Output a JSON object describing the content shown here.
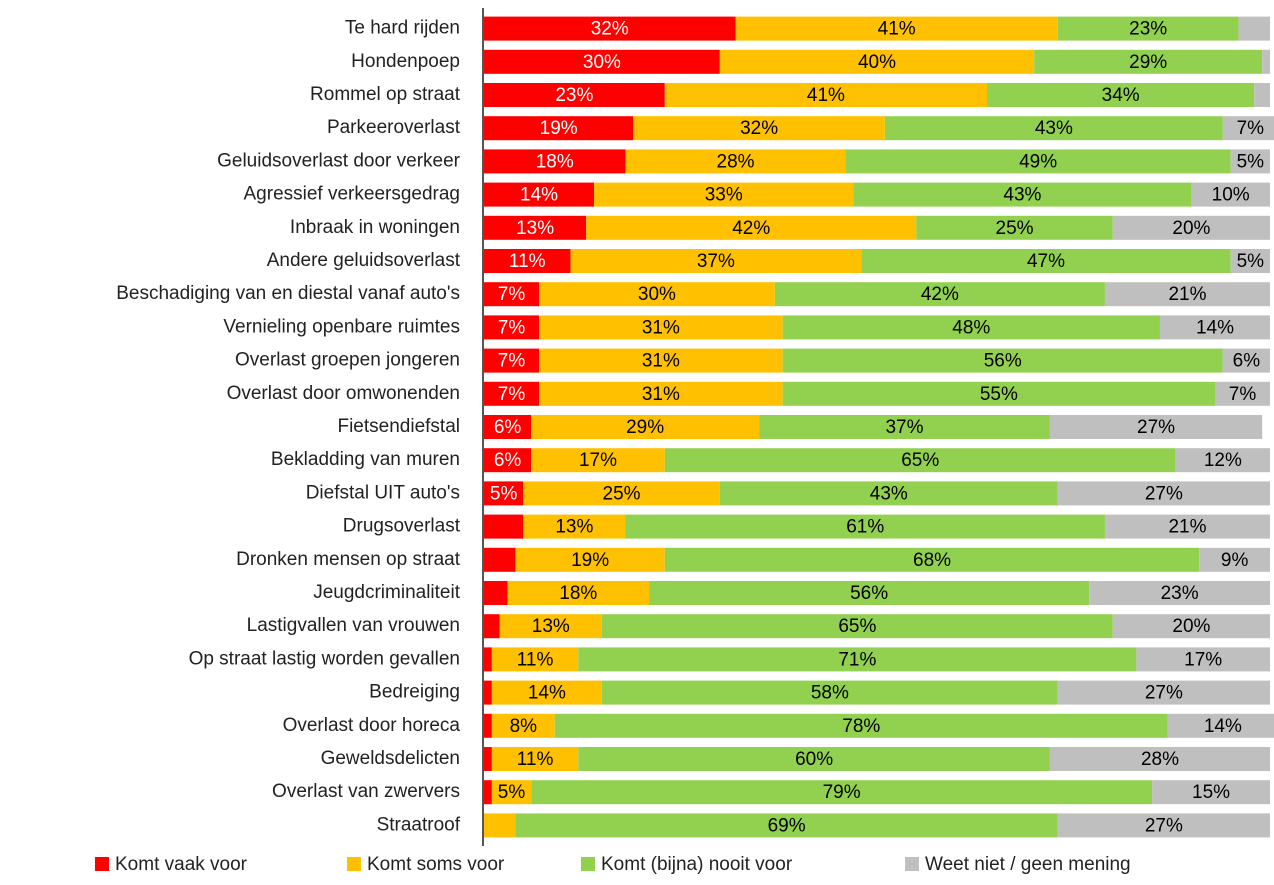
{
  "chart_data": {
    "type": "stacked_barh",
    "categories": [
      "Te hard rijden",
      "Hondenpoep",
      "Rommel op straat",
      "Parkeeroverlast",
      "Geluidsoverlast door verkeer",
      "Agressief verkeersgedrag",
      "Inbraak in woningen",
      "Andere geluidsoverlast",
      "Beschadiging van en diestal vanaf auto's",
      "Vernieling openbare ruimtes",
      "Overlast groepen jongeren",
      "Overlast door omwonenden",
      "Fietsendiefstal",
      "Bekladding van muren",
      "Diefstal UIT auto's",
      "Drugsoverlast",
      "Dronken mensen op straat",
      "Jeugdcriminaliteit",
      "Lastigvallen van vrouwen",
      "Op straat lastig worden gevallen",
      "Bedreiging",
      "Overlast door horeca",
      "Geweldsdelicten",
      "Overlast van zwervers",
      "Straatroof"
    ],
    "xlim": [
      0,
      100
    ],
    "series": [
      {
        "name": "Komt vaak voor",
        "color": "#ff0000",
        "label_color": "#ffffff",
        "values": [
          32,
          30,
          23,
          19,
          18,
          14,
          13,
          11,
          7,
          7,
          7,
          7,
          6,
          6,
          5,
          5,
          4,
          3,
          2,
          1,
          1,
          1,
          1,
          1,
          0
        ],
        "value_labels": [
          "32%",
          "30%",
          "23%",
          "19%",
          "18%",
          "14%",
          "13%",
          "11%",
          "7%",
          "7%",
          "7%",
          "7%",
          "6%",
          "6%",
          "5%",
          null,
          null,
          null,
          null,
          null,
          null,
          null,
          null,
          null,
          null
        ]
      },
      {
        "name": "Komt soms voor",
        "color": "#ffc000",
        "label_color": "#000000",
        "values": [
          41,
          40,
          41,
          32,
          28,
          33,
          42,
          37,
          30,
          31,
          31,
          31,
          29,
          17,
          25,
          13,
          19,
          18,
          13,
          11,
          14,
          8,
          11,
          5,
          4
        ],
        "value_labels": [
          "41%",
          "40%",
          "41%",
          "32%",
          "28%",
          "33%",
          "42%",
          "37%",
          "30%",
          "31%",
          "31%",
          "31%",
          "29%",
          "17%",
          "25%",
          "13%",
          "19%",
          "18%",
          "13%",
          "11%",
          "14%",
          "8%",
          "11%",
          "5%",
          null
        ]
      },
      {
        "name": "Komt (bijna) nooit voor",
        "color": "#92d050",
        "label_color": "#000000",
        "values": [
          23,
          29,
          34,
          43,
          49,
          43,
          25,
          47,
          42,
          48,
          56,
          55,
          37,
          65,
          43,
          61,
          68,
          56,
          65,
          71,
          58,
          78,
          60,
          79,
          69
        ],
        "value_labels": [
          "23%",
          "29%",
          "34%",
          "43%",
          "49%",
          "43%",
          "25%",
          "47%",
          "42%",
          "48%",
          "56%",
          "55%",
          "37%",
          "65%",
          "43%",
          "61%",
          "68%",
          "56%",
          "65%",
          "71%",
          "58%",
          "78%",
          "60%",
          "79%",
          "69%"
        ]
      },
      {
        "name": "Weet niet / geen mening",
        "color": "#bfbfbf",
        "label_color": "#000000",
        "values": [
          4,
          1,
          2,
          7,
          5,
          10,
          20,
          5,
          21,
          14,
          6,
          7,
          27,
          12,
          27,
          21,
          9,
          23,
          20,
          17,
          27,
          14,
          28,
          15,
          27
        ],
        "value_labels": [
          null,
          null,
          null,
          "7%",
          "5%",
          "10%",
          "20%",
          "5%",
          "21%",
          "14%",
          "6%",
          "7%",
          "27%",
          "12%",
          "27%",
          "21%",
          "9%",
          "23%",
          "20%",
          "17%",
          "27%",
          "14%",
          "28%",
          "15%",
          "27%"
        ]
      }
    ]
  }
}
